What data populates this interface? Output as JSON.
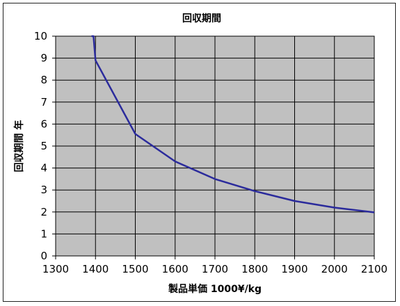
{
  "chart_data": {
    "type": "line",
    "title": "回収期間",
    "xlabel": "製品単価 1000¥/kg",
    "ylabel": "回収期間 年",
    "xlim": [
      1300,
      2100
    ],
    "ylim": [
      0,
      10
    ],
    "x_ticks": [
      1300,
      1400,
      1500,
      1600,
      1700,
      1800,
      1900,
      2000,
      2100
    ],
    "y_ticks": [
      0,
      1,
      2,
      3,
      4,
      5,
      6,
      7,
      8,
      9,
      10
    ],
    "grid": true,
    "plot_background": "#c0c0c0",
    "line_color": "#2b2b9c",
    "series": [
      {
        "x": [
          1390,
          1395,
          1400,
          1500,
          1600,
          1700,
          1800,
          1900,
          2000,
          2100
        ],
        "y": [
          10,
          10,
          8.9,
          5.55,
          4.3,
          3.5,
          2.95,
          2.5,
          2.2,
          1.98
        ]
      }
    ]
  }
}
